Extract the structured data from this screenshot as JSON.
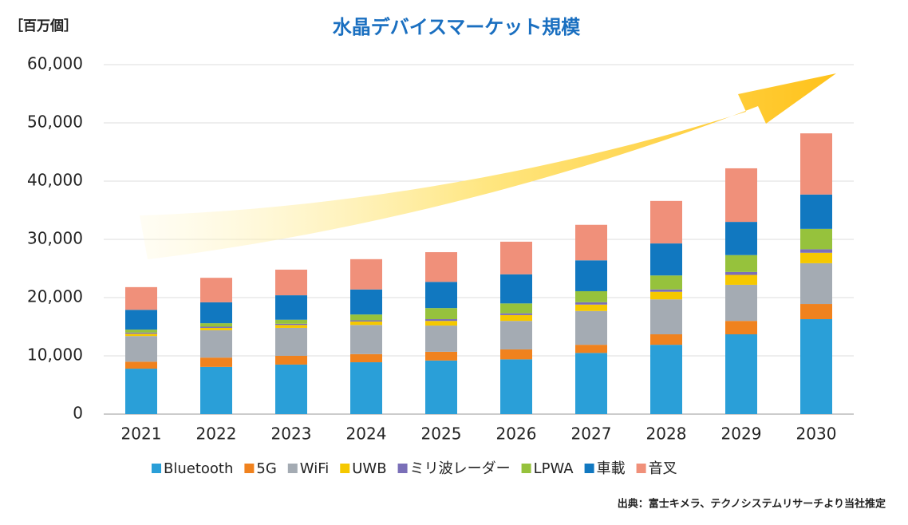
{
  "chart_data": {
    "type": "stacked_bar",
    "title": "水晶デバイスマーケット規模",
    "y_label": "［百万個］",
    "source": "出典：富士キメラ、テクノシステムリサーチより当社推定",
    "categories": [
      "2021",
      "2022",
      "2023",
      "2024",
      "2025",
      "2026",
      "2027",
      "2028",
      "2029",
      "2030"
    ],
    "ylim": [
      0,
      60000
    ],
    "yticks": [
      0,
      {
        "value": 10000,
        "label": "10,000"
      },
      {
        "value": 20000,
        "label": "20,000"
      },
      {
        "value": 30000,
        "label": "30,000"
      },
      {
        "value": 40000,
        "label": "40,000"
      },
      {
        "value": 50000,
        "label": "50,000"
      },
      {
        "value": 60000,
        "label": "60,000"
      }
    ],
    "grid": true,
    "series": [
      {
        "name": "Bluetooth",
        "color": "#2a9fd8",
        "values": [
          7800,
          8100,
          8500,
          8900,
          9200,
          9400,
          10500,
          11900,
          13700,
          16300
        ]
      },
      {
        "name": "5G",
        "color": "#f0821e",
        "values": [
          1200,
          1600,
          1500,
          1400,
          1500,
          1700,
          1400,
          1800,
          2300,
          2600
        ]
      },
      {
        "name": "WiFi",
        "color": "#a4abb3",
        "values": [
          4400,
          4700,
          4800,
          5000,
          4500,
          4900,
          5800,
          6000,
          6200,
          7000
        ]
      },
      {
        "name": "UWB",
        "color": "#f5c800",
        "values": [
          400,
          400,
          500,
          600,
          800,
          1000,
          1100,
          1300,
          1700,
          1800
        ]
      },
      {
        "name": "ミリ波レーダー",
        "color": "#7a6fb8",
        "values": [
          200,
          200,
          200,
          200,
          300,
          300,
          400,
          400,
          500,
          600
        ]
      },
      {
        "name": "LPWA",
        "color": "#96c23c",
        "values": [
          500,
          600,
          700,
          1000,
          1900,
          1700,
          1900,
          2400,
          2900,
          3500
        ]
      },
      {
        "name": "車載",
        "color": "#1178c0",
        "values": [
          3400,
          3600,
          4200,
          4300,
          4500,
          5000,
          5300,
          5500,
          5700,
          5900
        ]
      },
      {
        "name": "音叉",
        "color": "#f0907a",
        "values": [
          3900,
          4200,
          4400,
          5200,
          5100,
          5600,
          6100,
          7300,
          9200,
          10500
        ]
      }
    ]
  }
}
